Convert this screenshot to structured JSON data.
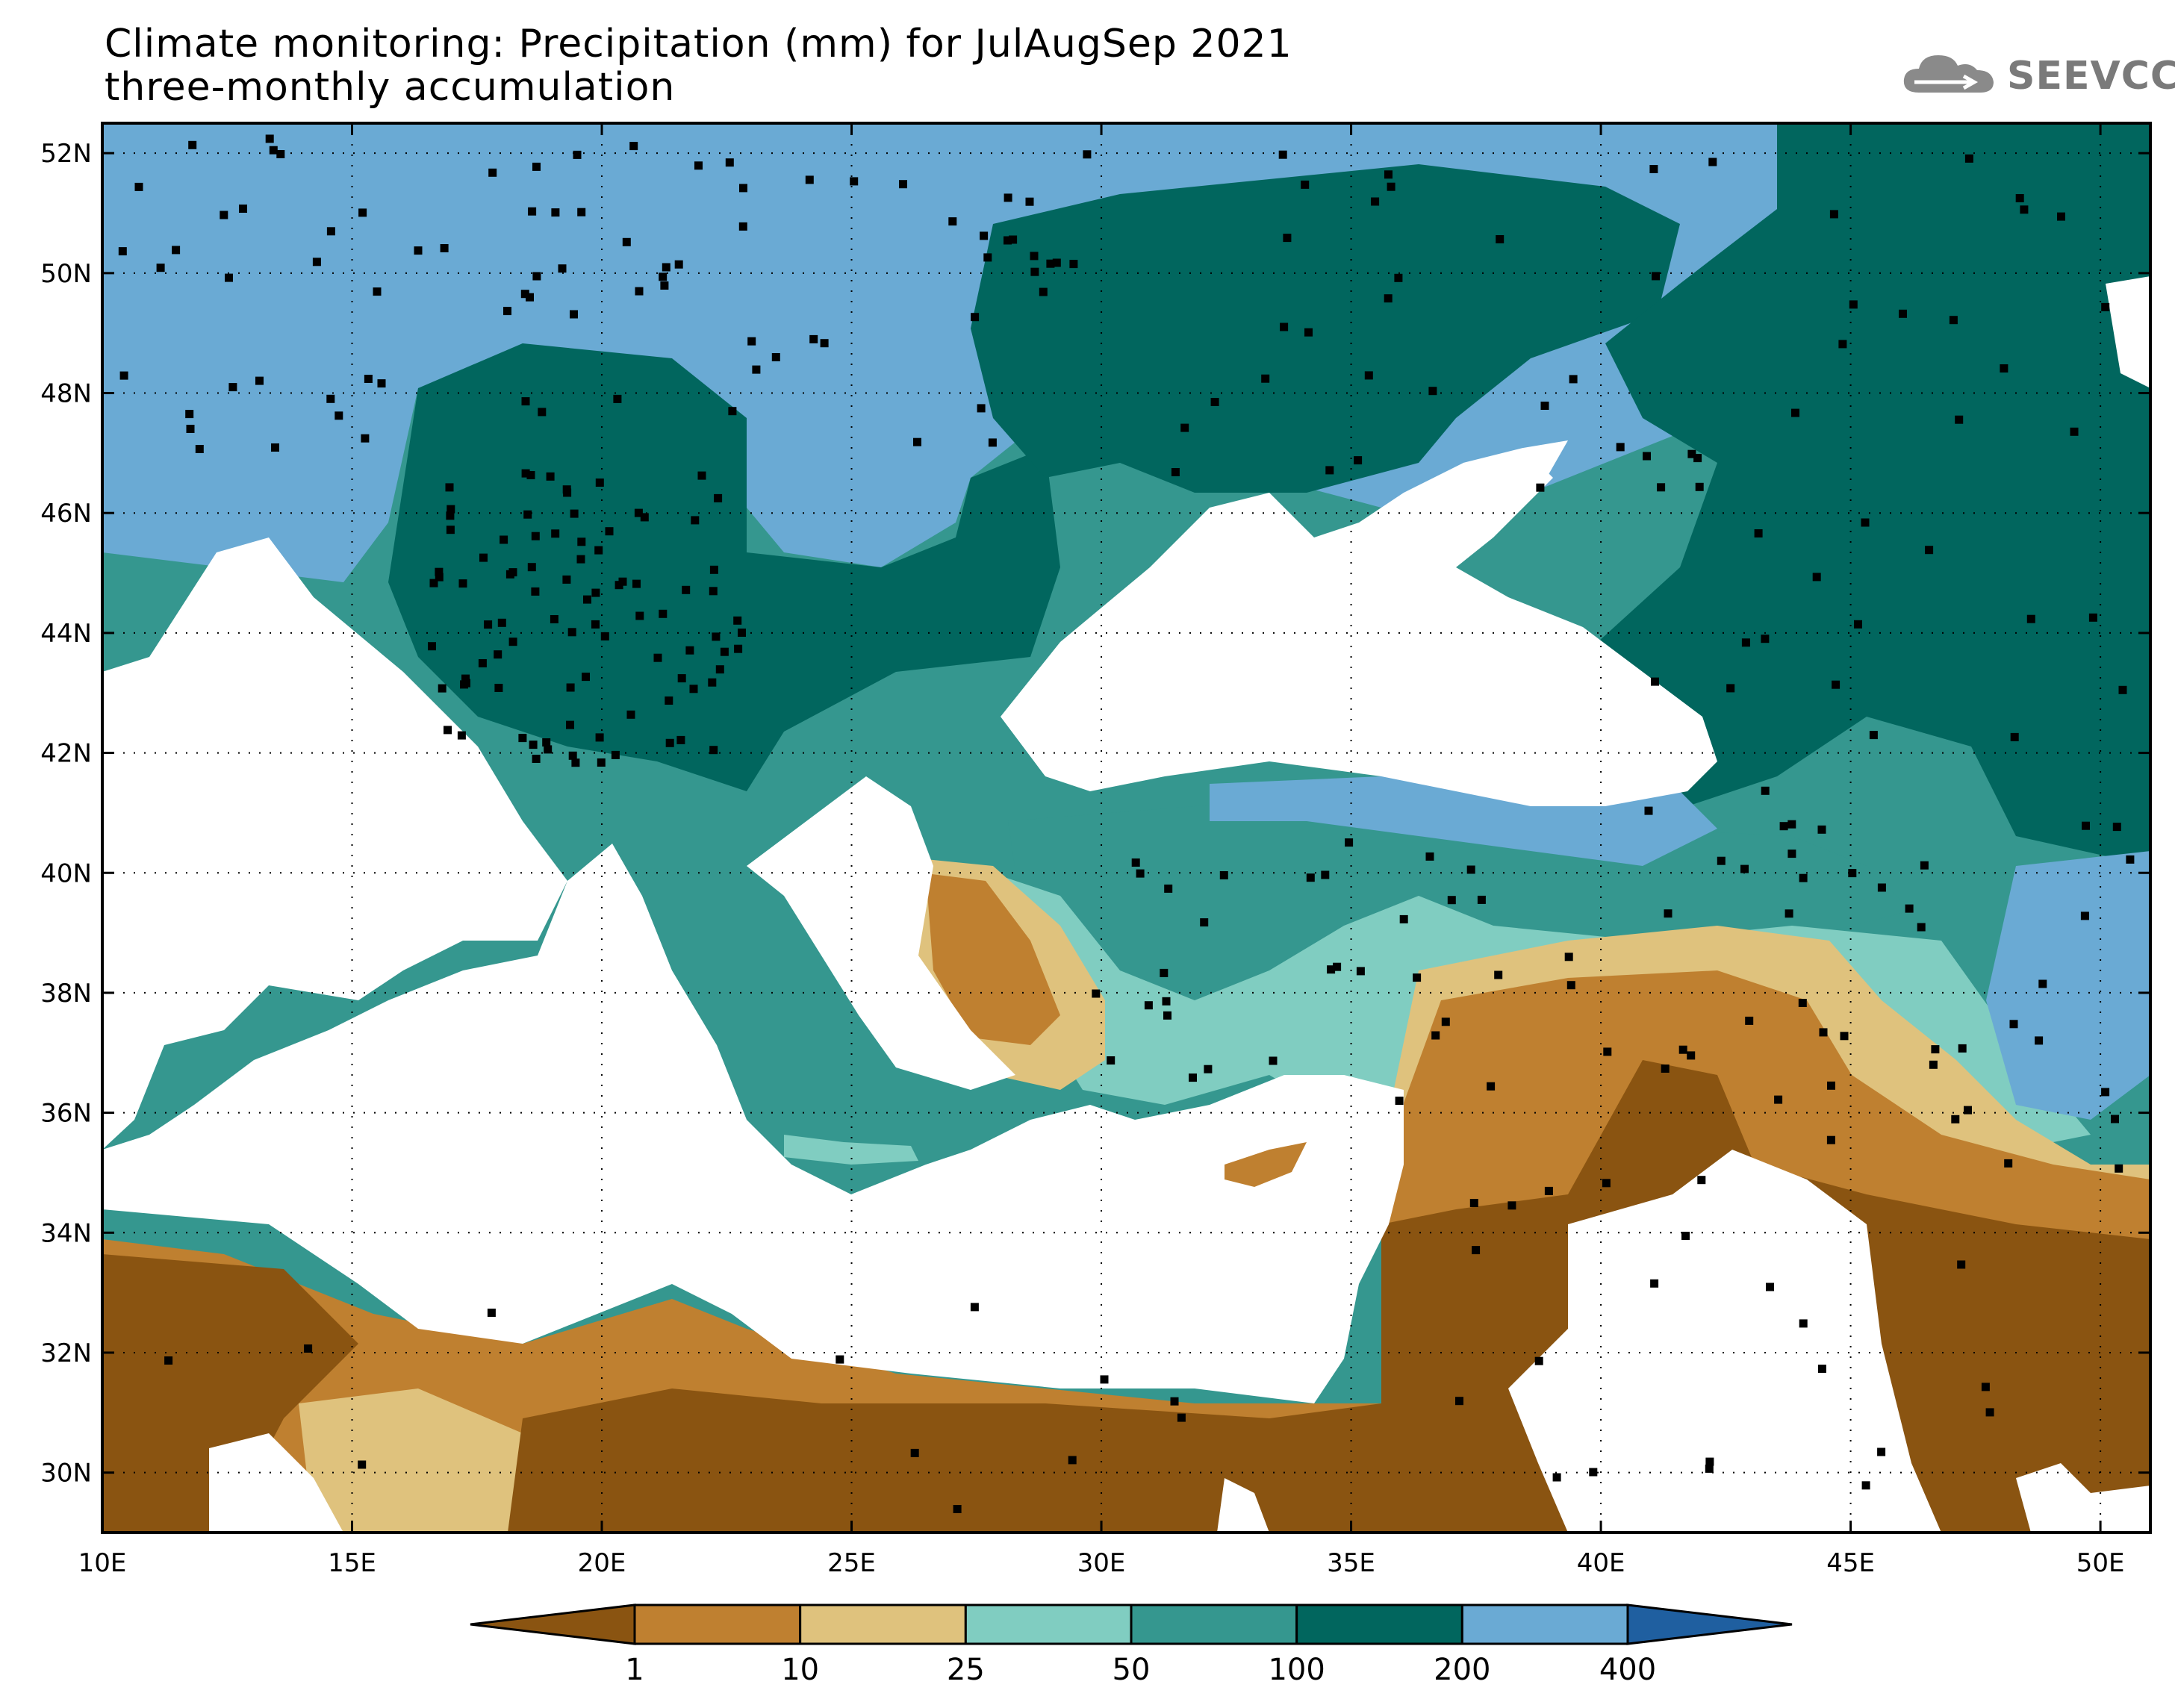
{
  "title": {
    "line1": "Climate monitoring: Precipitation (mm) for JulAugSep 2021",
    "line2": "three-monthly accumulation"
  },
  "logo": {
    "icon": "cloud-icon",
    "text": "SEEVCCC"
  },
  "map": {
    "lon_ticks": [
      "10E",
      "15E",
      "20E",
      "25E",
      "30E",
      "35E",
      "40E",
      "45E",
      "50E"
    ],
    "lat_ticks": [
      "52N",
      "50N",
      "48N",
      "46N",
      "44N",
      "42N",
      "40N",
      "38N",
      "36N",
      "34N",
      "32N",
      "30N"
    ],
    "lon_range": [
      10,
      51
    ],
    "lat_range": [
      29,
      52.5
    ],
    "grid": "dotted"
  },
  "colorbar": {
    "boundaries": [
      "1",
      "10",
      "25",
      "50",
      "100",
      "200",
      "400"
    ],
    "colors": [
      "#8a5411",
      "#bf8030",
      "#dfc27d",
      "#80cdc1",
      "#35978f",
      "#01665e",
      "#6aaad4",
      "#1f5fa0"
    ],
    "extend": "both"
  }
}
